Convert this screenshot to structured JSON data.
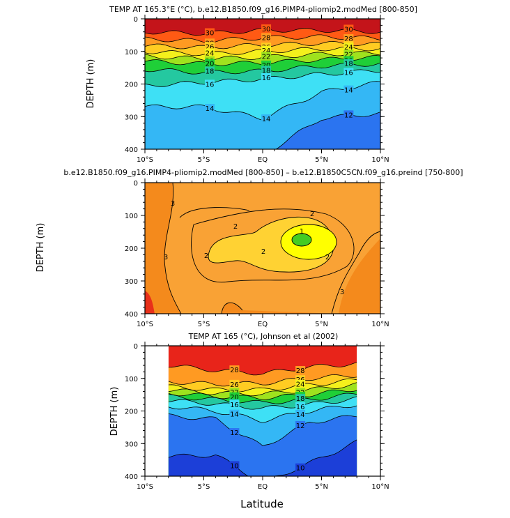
{
  "figure": {
    "x_axis_label": "Latitude"
  },
  "chart_data": [
    {
      "type": "heatmap",
      "title": "TEMP AT 165.3°E (°C), b.e12.B1850.f09_g16.PIMP4-pliomip2.modMed [800-850]",
      "xlabel": "",
      "ylabel": "DEPTH (m)",
      "xlim": [
        -10,
        10
      ],
      "ylim": [
        400,
        0
      ],
      "xticks": [
        -10,
        -5,
        0,
        5,
        10
      ],
      "xtick_labels": [
        "10°S",
        "5°S",
        "EQ",
        "5°N",
        "10°N"
      ],
      "yticks": [
        0,
        100,
        200,
        300,
        400
      ],
      "ytick_labels": [
        "0",
        "100",
        "200",
        "300",
        "400"
      ],
      "data_extent": [
        -10,
        10
      ],
      "levels": [
        8,
        10,
        12,
        14,
        16,
        18,
        20,
        22,
        24,
        26,
        28,
        30,
        32
      ],
      "contour_labels": [
        "30",
        "28",
        "26",
        "24",
        "22",
        "20",
        "18",
        "16",
        "14",
        "12"
      ],
      "depth_of_isotherm": {
        "lat": [
          -10,
          -5,
          0,
          5,
          10
        ],
        "isotherms": [
          {
            "t": 30,
            "depth": [
              40,
              45,
              35,
              35,
              40
            ]
          },
          {
            "t": 28,
            "depth": [
              62,
              68,
              58,
              55,
              60
            ]
          },
          {
            "t": 26,
            "depth": [
              82,
              88,
              80,
              75,
              78
            ]
          },
          {
            "t": 24,
            "depth": [
              100,
              108,
              100,
              92,
              92
            ]
          },
          {
            "t": 22,
            "depth": [
              115,
              122,
              118,
              108,
              105
            ]
          },
          {
            "t": 20,
            "depth": [
              130,
              138,
              135,
              125,
              118
            ]
          },
          {
            "t": 18,
            "depth": [
              155,
              165,
              160,
              145,
              138
            ]
          },
          {
            "t": 16,
            "depth": [
              205,
              195,
              185,
              170,
              158
            ]
          },
          {
            "t": 14,
            "depth": [
              270,
              270,
              305,
              225,
              195
            ]
          },
          {
            "t": 12,
            "depth": [
              420,
              420,
              420,
              305,
              290
            ]
          },
          {
            "t": 10,
            "depth": [
              500,
              500,
              500,
              470,
              430
            ]
          }
        ]
      }
    },
    {
      "type": "heatmap",
      "title": "b.e12.B1850.f09_g16.PIMP4-pliomip2.modMed [800-850] – b.e12.B1850C5CN.f09_g16.preind [750-800]",
      "xlabel": "",
      "ylabel": "DEPTH (m)",
      "xlim": [
        -10,
        10
      ],
      "ylim": [
        400,
        0
      ],
      "xticks": [
        -10,
        -5,
        0,
        5,
        10
      ],
      "xtick_labels": [
        "10°S",
        "5°S",
        "EQ",
        "5°N",
        "10°N"
      ],
      "yticks": [
        0,
        100,
        200,
        300,
        400
      ],
      "ytick_labels": [
        "0",
        "100",
        "200",
        "300",
        "400"
      ],
      "data_extent": [
        -10,
        10
      ],
      "levels": [
        1,
        2,
        3
      ],
      "contour_labels": [
        "3",
        "2",
        "2",
        "2",
        "1",
        "2",
        "3"
      ],
      "fill_levels": [
        {
          "range": ">3",
          "color": "#f48a1c"
        },
        {
          "range": "2-3",
          "color": "#f9a235"
        },
        {
          "range": "1-2",
          "color": "#ffd233"
        },
        {
          "range": "0.5-1",
          "color": "#ffff00"
        },
        {
          "range": "<0.5",
          "color": "#44cc22"
        }
      ]
    },
    {
      "type": "heatmap",
      "title": "TEMP AT 165 (°C), Johnson et al (2002)",
      "xlabel": "Latitude",
      "ylabel": "DEPTH (m)",
      "xlim": [
        -10,
        10
      ],
      "ylim": [
        400,
        0
      ],
      "xticks": [
        -10,
        -5,
        0,
        5,
        10
      ],
      "xtick_labels": [
        "10°S",
        "5°S",
        "EQ",
        "5°N",
        "10°N"
      ],
      "yticks": [
        0,
        100,
        200,
        300,
        400
      ],
      "ytick_labels": [
        "0",
        "100",
        "200",
        "300",
        "400"
      ],
      "data_extent": [
        -8,
        8
      ],
      "levels": [
        8,
        10,
        12,
        14,
        16,
        18,
        20,
        22,
        24,
        26,
        28,
        30
      ],
      "contour_labels": [
        "28",
        "26",
        "24",
        "22",
        "20",
        "18",
        "16",
        "14",
        "12",
        "12",
        "10",
        "10",
        "10"
      ],
      "depth_of_isotherm": {
        "lat": [
          -8,
          -4,
          0,
          4,
          8
        ],
        "isotherms": [
          {
            "t": 28,
            "depth": [
              60,
              75,
              85,
              65,
              55
            ]
          },
          {
            "t": 26,
            "depth": [
              110,
              118,
              115,
              100,
              90
            ]
          },
          {
            "t": 24,
            "depth": [
              125,
              135,
              135,
              120,
              105
            ]
          },
          {
            "t": 22,
            "depth": [
              135,
              145,
              148,
              135,
              118
            ]
          },
          {
            "t": 20,
            "depth": [
              145,
              155,
              160,
              150,
              132
            ]
          },
          {
            "t": 18,
            "depth": [
              155,
              165,
              175,
              165,
              148
            ]
          },
          {
            "t": 16,
            "depth": [
              168,
              178,
              192,
              180,
              162
            ]
          },
          {
            "t": 14,
            "depth": [
              185,
              200,
              230,
              200,
              180
            ]
          },
          {
            "t": 12,
            "depth": [
              215,
              225,
              310,
              235,
              215
            ]
          },
          {
            "t": 10,
            "depth": [
              340,
              335,
              420,
              360,
              295
            ]
          },
          {
            "t": 8,
            "depth": [
              500,
              500,
              500,
              470,
              420
            ]
          }
        ]
      }
    }
  ]
}
